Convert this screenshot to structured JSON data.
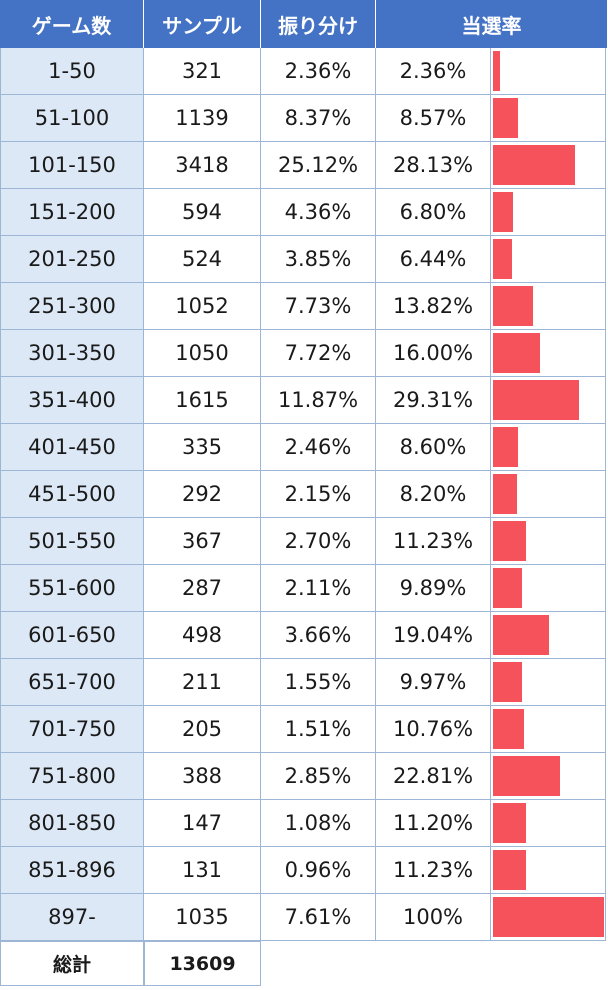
{
  "headers": [
    "ゲーム数",
    "サンプル",
    "振り分け",
    "当選率"
  ],
  "rows": [
    {
      "games": "1-50",
      "samples": "321",
      "share": "2.36%",
      "rate": "2.36%",
      "rate_value": 2.36
    },
    {
      "games": "51-100",
      "samples": "1139",
      "share": "8.37%",
      "rate": "8.57%",
      "rate_value": 8.57
    },
    {
      "games": "101-150",
      "samples": "3418",
      "share": "25.12%",
      "rate": "28.13%",
      "rate_value": 28.13
    },
    {
      "games": "151-200",
      "samples": "594",
      "share": "4.36%",
      "rate": "6.80%",
      "rate_value": 6.8
    },
    {
      "games": "201-250",
      "samples": "524",
      "share": "3.85%",
      "rate": "6.44%",
      "rate_value": 6.44
    },
    {
      "games": "251-300",
      "samples": "1052",
      "share": "7.73%",
      "rate": "13.82%",
      "rate_value": 13.82
    },
    {
      "games": "301-350",
      "samples": "1050",
      "share": "7.72%",
      "rate": "16.00%",
      "rate_value": 16.0
    },
    {
      "games": "351-400",
      "samples": "1615",
      "share": "11.87%",
      "rate": "29.31%",
      "rate_value": 29.31
    },
    {
      "games": "401-450",
      "samples": "335",
      "share": "2.46%",
      "rate": "8.60%",
      "rate_value": 8.6
    },
    {
      "games": "451-500",
      "samples": "292",
      "share": "2.15%",
      "rate": "8.20%",
      "rate_value": 8.2
    },
    {
      "games": "501-550",
      "samples": "367",
      "share": "2.70%",
      "rate": "11.23%",
      "rate_value": 11.23
    },
    {
      "games": "551-600",
      "samples": "287",
      "share": "2.11%",
      "rate": "9.89%",
      "rate_value": 9.89
    },
    {
      "games": "601-650",
      "samples": "498",
      "share": "3.66%",
      "rate": "19.04%",
      "rate_value": 19.04
    },
    {
      "games": "651-700",
      "samples": "211",
      "share": "1.55%",
      "rate": "9.97%",
      "rate_value": 9.97
    },
    {
      "games": "701-750",
      "samples": "205",
      "share": "1.51%",
      "rate": "10.76%",
      "rate_value": 10.76
    },
    {
      "games": "751-800",
      "samples": "388",
      "share": "2.85%",
      "rate": "22.81%",
      "rate_value": 22.81
    },
    {
      "games": "801-850",
      "samples": "147",
      "share": "1.08%",
      "rate": "11.20%",
      "rate_value": 11.2
    },
    {
      "games": "851-896",
      "samples": "131",
      "share": "0.96%",
      "rate": "11.23%",
      "rate_value": 11.23
    },
    {
      "games": "897-",
      "samples": "1035",
      "share": "7.61%",
      "rate": "100%",
      "rate_value": 100
    }
  ],
  "total": {
    "label": "総計",
    "value": "13609"
  },
  "bar_scale_max": 38.0,
  "colors": {
    "header": "#4472c4",
    "first_col": "#dce8f5",
    "bar": "#f5525c"
  }
}
